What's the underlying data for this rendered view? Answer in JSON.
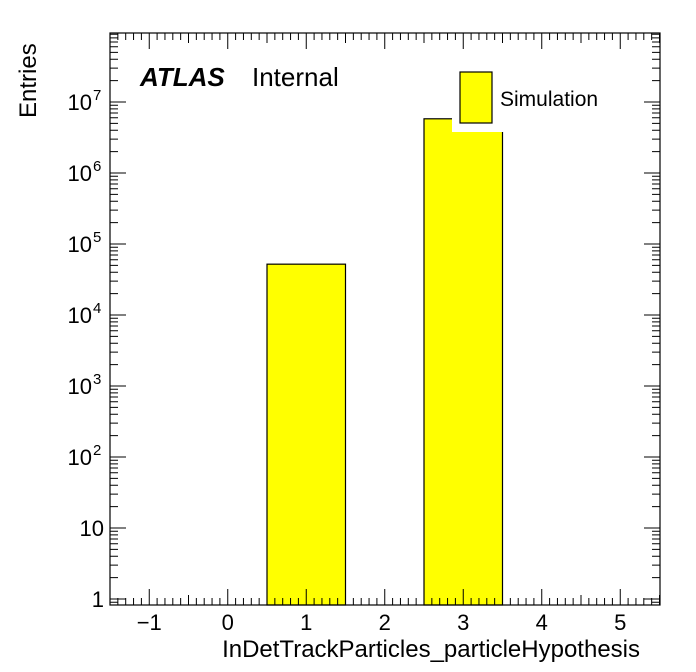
{
  "chart_data": {
    "type": "bar",
    "xlabel": "InDetTrackParticles_particleHypothesis",
    "ylabel": "Entries",
    "log_y": true,
    "xlim": [
      -1.5,
      5.5
    ],
    "ylim": [
      0.8,
      100000000
    ],
    "x_ticks": [
      "−1",
      "0",
      "1",
      "2",
      "3",
      "4",
      "5"
    ],
    "y_ticks": [
      {
        "base": "1",
        "exp": ""
      },
      {
        "base": "10",
        "exp": ""
      },
      {
        "base": "10",
        "exp": "2"
      },
      {
        "base": "10",
        "exp": "3"
      },
      {
        "base": "10",
        "exp": "4"
      },
      {
        "base": "10",
        "exp": "5"
      },
      {
        "base": "10",
        "exp": "6"
      },
      {
        "base": "10",
        "exp": "7"
      }
    ],
    "bins": [
      {
        "low": 0.5,
        "high": 1.5,
        "value": 52000
      },
      {
        "low": 2.5,
        "high": 3.5,
        "value": 5800000
      }
    ],
    "fill_color": "#ffff00",
    "atlas_label": "ATLAS",
    "atlas_status": "Internal",
    "legend": [
      {
        "name": "Simulation",
        "color": "#ffff00"
      }
    ]
  }
}
